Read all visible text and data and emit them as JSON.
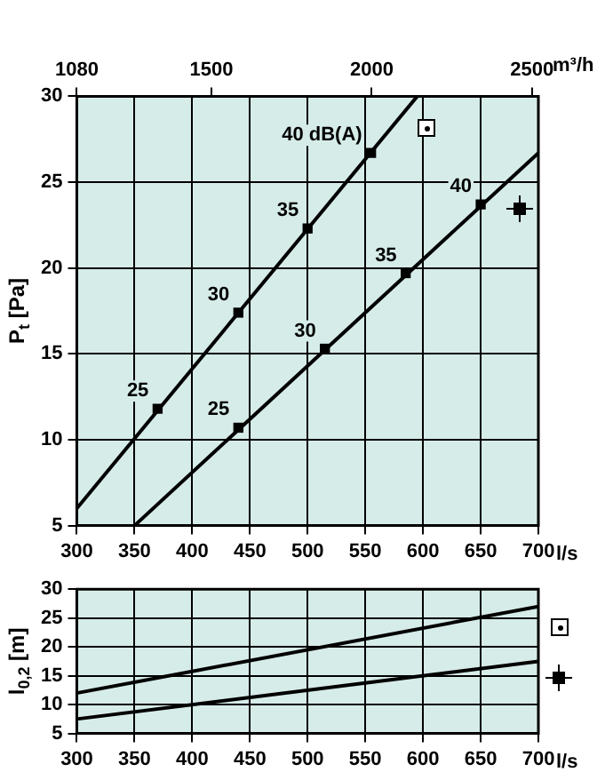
{
  "chart_data": [
    {
      "type": "line",
      "xlabel": "l/s",
      "x2label": "m³/h",
      "ylabel": "P$_{t}$ [Pa]",
      "xlim": [
        300,
        700
      ],
      "xticks": [
        300,
        350,
        400,
        450,
        500,
        550,
        600,
        650,
        700
      ],
      "x2lim": [
        1080,
        2520
      ],
      "x2ticks": [
        1080,
        1500,
        2000,
        2500
      ],
      "ylim": [
        5,
        30
      ],
      "yticks": [
        5,
        10,
        15,
        20,
        25,
        30
      ],
      "grid": true,
      "legend": false,
      "series": [
        {
          "type": "line",
          "color": "#000000",
          "marker": "none",
          "line_style": "solid",
          "x": [
            300,
            595
          ],
          "values": [
            6,
            30
          ]
        },
        {
          "type": "line",
          "color": "#000000",
          "marker": "none",
          "line_style": "solid",
          "x": [
            350,
            700
          ],
          "values": [
            5,
            26.7
          ]
        },
        {
          "type": "scatter",
          "color": "#000000",
          "marker": "square",
          "x": [
            370,
            440,
            500,
            555
          ],
          "values": [
            11.8,
            17.4,
            22.3,
            26.7
          ]
        },
        {
          "type": "scatter",
          "color": "#000000",
          "marker": "square",
          "x": [
            440,
            515,
            585,
            650
          ],
          "values": [
            10.7,
            15.3,
            19.7,
            23.7
          ]
        }
      ],
      "annotations": [
        {
          "text": "25",
          "x": 370,
          "y": 11.8
        },
        {
          "text": "30",
          "x": 440,
          "y": 17.4
        },
        {
          "text": "35",
          "x": 500,
          "y": 22.3
        },
        {
          "text": "40 dB(A)",
          "x": 555,
          "y": 26.7
        },
        {
          "text": "25",
          "x": 440,
          "y": 10.7
        },
        {
          "text": "30",
          "x": 515,
          "y": 15.3
        },
        {
          "text": "35",
          "x": 585,
          "y": 19.7
        },
        {
          "text": "40",
          "x": 650,
          "y": 23.7
        }
      ]
    },
    {
      "type": "line",
      "xlabel": "l/s",
      "ylabel": "l$_{0,2}$ [m]",
      "xlim": [
        300,
        700
      ],
      "xticks": [
        300,
        350,
        400,
        450,
        500,
        550,
        600,
        650,
        700
      ],
      "ylim": [
        5,
        30
      ],
      "yticks": [
        5,
        10,
        15,
        20,
        25,
        30
      ],
      "grid": true,
      "legend": false,
      "series": [
        {
          "type": "line",
          "color": "#000000",
          "marker": "none",
          "line_style": "solid",
          "x": [
            300,
            700
          ],
          "values": [
            12,
            27
          ]
        },
        {
          "type": "line",
          "color": "#000000",
          "marker": "none",
          "line_style": "solid",
          "x": [
            300,
            700
          ],
          "values": [
            7.5,
            17.5
          ]
        }
      ]
    }
  ]
}
